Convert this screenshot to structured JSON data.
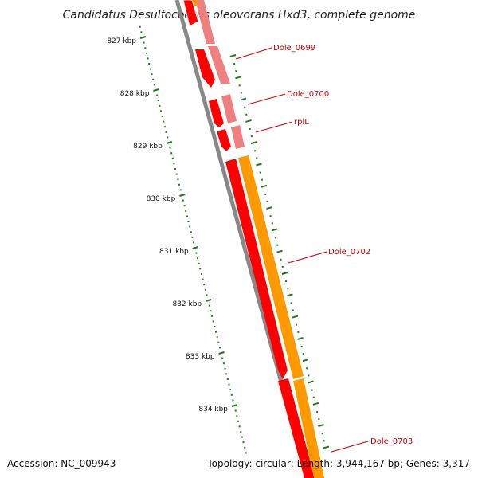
{
  "title": "Candidatus Desulfococcus oleovorans Hxd3, complete genome",
  "ruler": {
    "unit": "kbp",
    "ticks": [
      {
        "label": "827 kbp",
        "kbp": 827
      },
      {
        "label": "828 kbp",
        "kbp": 828
      },
      {
        "label": "829 kbp",
        "kbp": 829
      },
      {
        "label": "830 kbp",
        "kbp": 830
      },
      {
        "label": "831 kbp",
        "kbp": 831
      },
      {
        "label": "832 kbp",
        "kbp": 832
      },
      {
        "label": "833 kbp",
        "kbp": 833
      },
      {
        "label": "834 kbp",
        "kbp": 834
      }
    ]
  },
  "genes": [
    {
      "name": "Dole_0699"
    },
    {
      "name": "Dole_0700"
    },
    {
      "name": "rplL"
    },
    {
      "name": "Dole_0702"
    },
    {
      "name": "Dole_0703"
    }
  ],
  "footer": {
    "accession": "Accession: NC_009943",
    "summary": "Topology: circular; Length: 3,944,167 bp; Genes: 3,317"
  },
  "colors": {
    "cds": "#ff0000",
    "cds_light": "#f08080",
    "gene_bar": "#ff9900",
    "backbone": "#808080",
    "ruler": "#1f7a1f",
    "label": "#cc0000"
  }
}
